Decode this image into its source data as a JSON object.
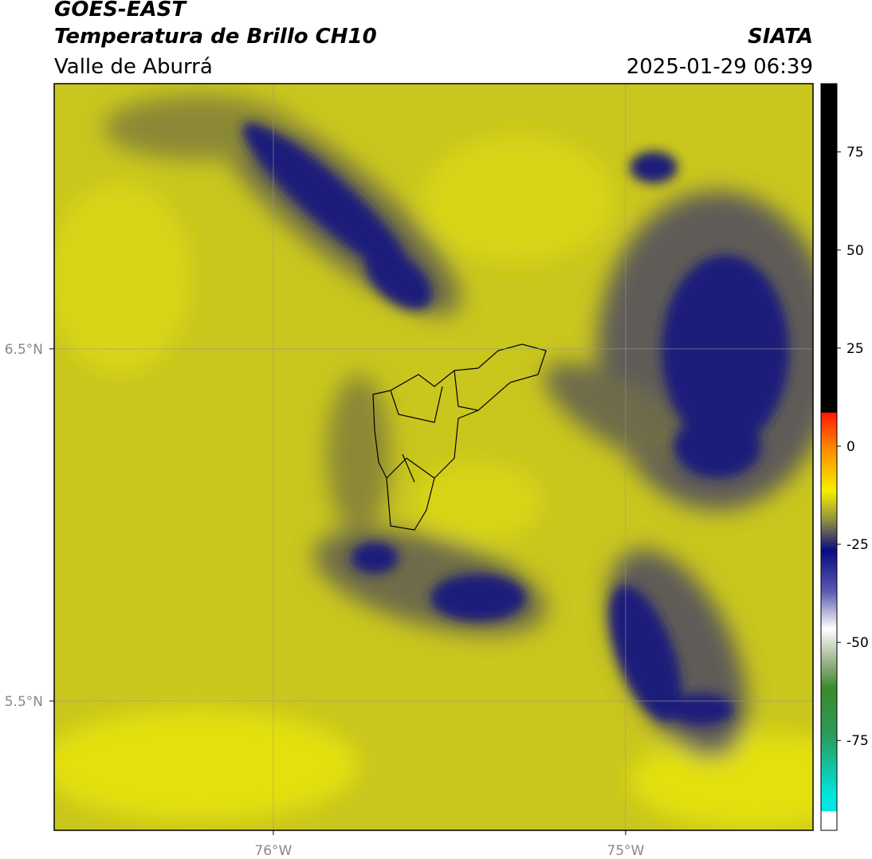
{
  "header": {
    "title": "GOES-EAST",
    "subtitle": "Temperatura de Brillo CH10",
    "region": "Valle de Aburrá",
    "source": "SIATA",
    "datetime": "2025-01-29 06:39"
  },
  "map": {
    "xlim": [
      -76.622,
      -74.468
    ],
    "ylim": [
      5.133,
      7.253
    ],
    "xticks": [
      {
        "value": -76,
        "label": "76°W"
      },
      {
        "value": -75,
        "label": "75°W"
      }
    ],
    "yticks": [
      {
        "value": 6.5,
        "label": "6.5°N"
      },
      {
        "value": 5.5,
        "label": "5.5°N"
      }
    ],
    "grid": true
  },
  "colorbar": {
    "lim": [
      -97.9,
      92.4
    ],
    "ticks": [
      75,
      50,
      25,
      0,
      -25,
      -50,
      -75
    ]
  }
}
